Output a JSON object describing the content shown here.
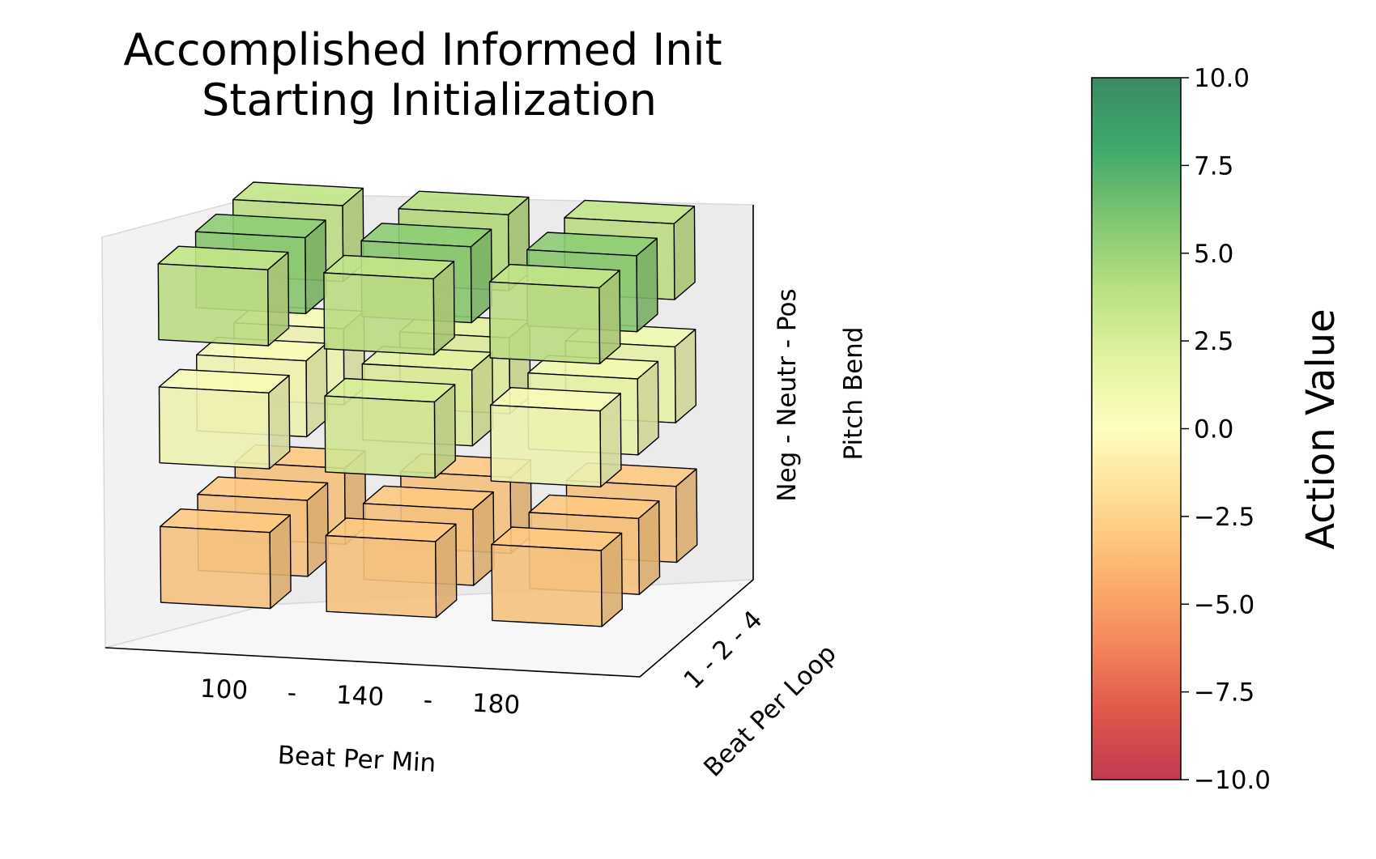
{
  "chart_data": {
    "type": "bar3d",
    "title_lines": [
      "Accomplished Informed Init",
      "Starting Initialization"
    ],
    "xlabel": "Beat Per Min",
    "ylabel": "Beat Per Loop",
    "zlabel": "Pitch Bend",
    "x_tick_text": [
      "100",
      "-",
      "140",
      "-",
      "180"
    ],
    "y_tick_text": "1 - 2 - 4",
    "z_tick_text": "Neg - Neutr - Pos",
    "x_categories": [
      "100",
      "140",
      "180"
    ],
    "y_categories": [
      "1",
      "2",
      "4"
    ],
    "z_categories": [
      "Neg",
      "Neutr",
      "Pos"
    ],
    "values": {
      "Pos": [
        [
          3.5,
          3.5,
          3.5
        ],
        [
          5.5,
          5.5,
          5.5
        ],
        [
          3.5,
          4.0,
          3.5
        ]
      ],
      "Neutr": [
        [
          0.5,
          2.5,
          0.5
        ],
        [
          0.5,
          2.0,
          1.0
        ],
        [
          0.5,
          2.0,
          1.0
        ]
      ],
      "Neg": [
        [
          -3.0,
          -3.0,
          -3.0
        ],
        [
          -3.0,
          -3.0,
          -3.0
        ],
        [
          -3.0,
          -3.0,
          -3.0
        ]
      ]
    },
    "colorbar": {
      "label": "Action Value",
      "min": -10.0,
      "max": 10.0,
      "ticks": [
        "10.0",
        "7.5",
        "5.0",
        "2.5",
        "0.0",
        "−2.5",
        "−5.0",
        "−7.5",
        "−10.0"
      ],
      "colormap": "RdYlGn"
    }
  }
}
